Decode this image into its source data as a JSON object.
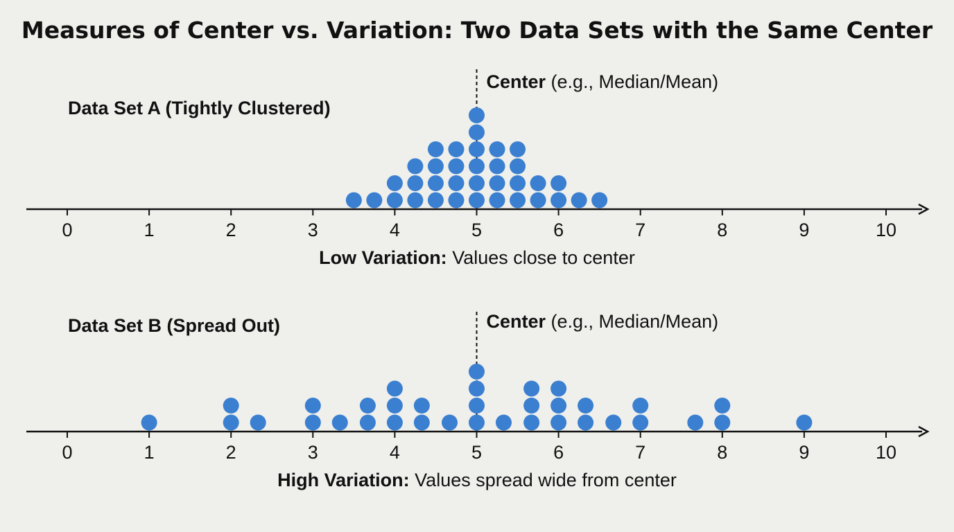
{
  "title": "Measures of Center vs. Variation: Two Data Sets with the Same Center",
  "chart_data": [
    {
      "type": "scatter",
      "subtype": "dot plot",
      "label": "Data Set A (Tightly Clustered)",
      "center_value": 5,
      "center_label_bold": "Center",
      "center_label_rest": " (e.g., Median/Mean)",
      "caption_bold": "Low Variation:",
      "caption_rest": " Values close to center",
      "xlim": [
        0,
        10
      ],
      "ticks": [
        "0",
        "1",
        "2",
        "3",
        "4",
        "5",
        "6",
        "7",
        "8",
        "9",
        "10"
      ],
      "x": [
        3.5,
        3.75,
        4,
        4.25,
        4.5,
        4.75,
        5,
        5.25,
        5.5,
        5.75,
        6,
        6.25,
        6.5
      ],
      "counts": [
        1,
        1,
        2,
        3,
        4,
        4,
        6,
        4,
        4,
        2,
        2,
        1,
        1
      ],
      "color": "#3a7fd0"
    },
    {
      "type": "scatter",
      "subtype": "dot plot",
      "label": "Data Set B (Spread Out)",
      "center_value": 5,
      "center_label_bold": "Center",
      "center_label_rest": " (e.g., Median/Mean)",
      "caption_bold": "High Variation:",
      "caption_rest": " Values spread wide from center",
      "xlim": [
        0,
        10
      ],
      "ticks": [
        "0",
        "1",
        "2",
        "3",
        "4",
        "5",
        "6",
        "7",
        "8",
        "9",
        "10"
      ],
      "x": [
        1,
        2,
        2.33,
        3,
        3.33,
        3.67,
        4,
        4.33,
        4.67,
        5,
        5.33,
        5.67,
        6,
        6.33,
        6.67,
        7,
        7.67,
        8,
        9
      ],
      "counts": [
        1,
        2,
        1,
        2,
        1,
        2,
        3,
        2,
        1,
        4,
        1,
        3,
        3,
        2,
        1,
        2,
        1,
        2,
        1
      ],
      "color": "#3a7fd0"
    }
  ]
}
